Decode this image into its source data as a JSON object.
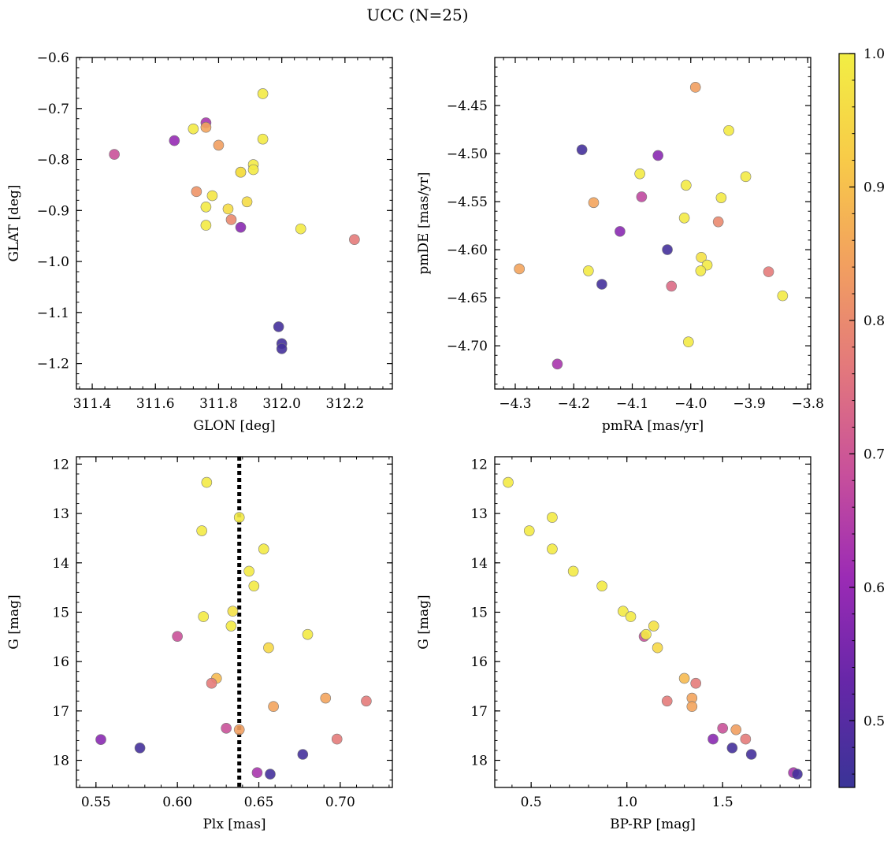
{
  "figure": {
    "title": "UCC (N=25)"
  },
  "colorbar": {
    "min": 0.45,
    "max": 1.0,
    "ticks": [
      0.5,
      0.6,
      0.7,
      0.8,
      0.9,
      1.0
    ],
    "tick_labels": [
      "0.5",
      "0.6",
      "0.7",
      "0.8",
      "0.9",
      "1.0"
    ],
    "colormap": "plasma",
    "colors": [
      "#3a3497",
      "#6627a8",
      "#9b2bb5",
      "#c8509b",
      "#e3787c",
      "#f2a05f",
      "#f8cb48",
      "#f2ee44"
    ]
  },
  "chart_data": [
    {
      "type": "scatter",
      "xlabel": "GLON [deg]",
      "ylabel": "GLAT [deg]",
      "xlim": [
        311.35,
        312.35
      ],
      "ylim": [
        -1.25,
        -0.6
      ],
      "y_inverted": false,
      "xticks": [
        311.4,
        311.6,
        311.8,
        312.0,
        312.2
      ],
      "xtick_labels": [
        "311.4",
        "311.6",
        "311.8",
        "312.0",
        "312.2"
      ],
      "yticks": [
        -0.6,
        -0.7,
        -0.8,
        -0.9,
        -1.0,
        -1.1,
        -1.2
      ],
      "ytick_labels": [
        "−0.6",
        "−0.7",
        "−0.8",
        "−0.9",
        "−1.0",
        "−1.1",
        "−1.2"
      ],
      "points": [
        {
          "x": 311.47,
          "y": -0.79,
          "c": 0.69
        },
        {
          "x": 311.66,
          "y": -0.763,
          "c": 0.6
        },
        {
          "x": 311.72,
          "y": -0.74,
          "c": 0.99
        },
        {
          "x": 311.76,
          "y": -0.728,
          "c": 0.63
        },
        {
          "x": 311.76,
          "y": -0.737,
          "c": 0.85
        },
        {
          "x": 311.8,
          "y": -0.772,
          "c": 0.84
        },
        {
          "x": 311.73,
          "y": -0.863,
          "c": 0.82
        },
        {
          "x": 311.78,
          "y": -0.871,
          "c": 0.98
        },
        {
          "x": 311.76,
          "y": -0.893,
          "c": 0.99
        },
        {
          "x": 311.76,
          "y": -0.929,
          "c": 0.99
        },
        {
          "x": 311.83,
          "y": -0.897,
          "c": 0.96
        },
        {
          "x": 311.84,
          "y": -0.918,
          "c": 0.8
        },
        {
          "x": 311.87,
          "y": -0.825,
          "c": 0.89
        },
        {
          "x": 311.87,
          "y": -0.825,
          "c": 0.97
        },
        {
          "x": 311.87,
          "y": -0.933,
          "c": 0.58
        },
        {
          "x": 311.89,
          "y": -0.883,
          "c": 0.96
        },
        {
          "x": 311.91,
          "y": -0.81,
          "c": 0.99
        },
        {
          "x": 311.91,
          "y": -0.82,
          "c": 0.99
        },
        {
          "x": 311.94,
          "y": -0.671,
          "c": 0.99
        },
        {
          "x": 311.94,
          "y": -0.76,
          "c": 0.99
        },
        {
          "x": 312.06,
          "y": -0.936,
          "c": 0.99
        },
        {
          "x": 312.23,
          "y": -0.957,
          "c": 0.77
        },
        {
          "x": 311.99,
          "y": -1.128,
          "c": 0.47
        },
        {
          "x": 312.0,
          "y": -1.161,
          "c": 0.47
        },
        {
          "x": 312.0,
          "y": -1.171,
          "c": 0.47
        }
      ]
    },
    {
      "type": "scatter",
      "xlabel": "pmRA [mas/yr]",
      "ylabel": "pmDE [mas/yr]",
      "xlim": [
        -4.335,
        -3.795
      ],
      "ylim": [
        -4.745,
        -4.4
      ],
      "y_inverted": false,
      "xticks": [
        -4.3,
        -4.2,
        -4.1,
        -4.0,
        -3.9,
        -3.8
      ],
      "xtick_labels": [
        "−4.3",
        "−4.2",
        "−4.1",
        "−4.0",
        "−3.9",
        "−3.8"
      ],
      "yticks": [
        -4.45,
        -4.5,
        -4.55,
        -4.6,
        -4.65,
        -4.7
      ],
      "ytick_labels": [
        "−4.45",
        "−4.50",
        "−4.55",
        "−4.60",
        "−4.65",
        "−4.70"
      ],
      "points": [
        {
          "x": -3.992,
          "y": -4.431,
          "c": 0.84
        },
        {
          "x": -3.935,
          "y": -4.476,
          "c": 0.99
        },
        {
          "x": -4.186,
          "y": -4.496,
          "c": 0.47
        },
        {
          "x": -4.056,
          "y": -4.502,
          "c": 0.58
        },
        {
          "x": -4.087,
          "y": -4.521,
          "c": 0.99
        },
        {
          "x": -3.906,
          "y": -4.524,
          "c": 0.99
        },
        {
          "x": -4.008,
          "y": -4.533,
          "c": 0.99
        },
        {
          "x": -4.084,
          "y": -4.545,
          "c": 0.67
        },
        {
          "x": -3.948,
          "y": -4.546,
          "c": 0.99
        },
        {
          "x": -4.166,
          "y": -4.551,
          "c": 0.85
        },
        {
          "x": -4.011,
          "y": -4.567,
          "c": 0.99
        },
        {
          "x": -3.953,
          "y": -4.571,
          "c": 0.8
        },
        {
          "x": -4.121,
          "y": -4.581,
          "c": 0.58
        },
        {
          "x": -4.04,
          "y": -4.6,
          "c": 0.47
        },
        {
          "x": -3.982,
          "y": -4.608,
          "c": 0.97
        },
        {
          "x": -3.972,
          "y": -4.616,
          "c": 0.99
        },
        {
          "x": -4.293,
          "y": -4.62,
          "c": 0.85
        },
        {
          "x": -4.175,
          "y": -4.622,
          "c": 0.99
        },
        {
          "x": -3.983,
          "y": -4.622,
          "c": 0.99
        },
        {
          "x": -3.867,
          "y": -4.623,
          "c": 0.77
        },
        {
          "x": -4.152,
          "y": -4.636,
          "c": 0.47
        },
        {
          "x": -4.033,
          "y": -4.638,
          "c": 0.74
        },
        {
          "x": -3.843,
          "y": -4.648,
          "c": 0.99
        },
        {
          "x": -4.004,
          "y": -4.696,
          "c": 0.99
        },
        {
          "x": -4.228,
          "y": -4.719,
          "c": 0.63
        }
      ]
    },
    {
      "type": "scatter",
      "xlabel": "Plx [mas]",
      "ylabel": "G [mag]",
      "xlim": [
        0.538,
        0.732
      ],
      "ylim": [
        11.85,
        18.55
      ],
      "y_inverted": true,
      "xticks": [
        0.55,
        0.6,
        0.65,
        0.7
      ],
      "xtick_labels": [
        "0.55",
        "0.60",
        "0.65",
        "0.70"
      ],
      "yticks": [
        12,
        13,
        14,
        15,
        16,
        17,
        18
      ],
      "ytick_labels": [
        "12",
        "13",
        "14",
        "15",
        "16",
        "17",
        "18"
      ],
      "vline": 0.638,
      "points": [
        {
          "x": 0.618,
          "y": 12.37,
          "c": 0.99
        },
        {
          "x": 0.638,
          "y": 13.08,
          "c": 0.99
        },
        {
          "x": 0.615,
          "y": 13.35,
          "c": 0.99
        },
        {
          "x": 0.653,
          "y": 13.72,
          "c": 0.99
        },
        {
          "x": 0.644,
          "y": 14.17,
          "c": 0.99
        },
        {
          "x": 0.647,
          "y": 14.47,
          "c": 0.99
        },
        {
          "x": 0.634,
          "y": 14.98,
          "c": 0.97
        },
        {
          "x": 0.616,
          "y": 15.09,
          "c": 0.99
        },
        {
          "x": 0.633,
          "y": 15.28,
          "c": 0.99
        },
        {
          "x": 0.68,
          "y": 15.45,
          "c": 0.99
        },
        {
          "x": 0.6,
          "y": 15.49,
          "c": 0.69
        },
        {
          "x": 0.656,
          "y": 15.72,
          "c": 0.95
        },
        {
          "x": 0.624,
          "y": 16.34,
          "c": 0.89
        },
        {
          "x": 0.621,
          "y": 16.44,
          "c": 0.77
        },
        {
          "x": 0.691,
          "y": 16.74,
          "c": 0.85
        },
        {
          "x": 0.716,
          "y": 16.8,
          "c": 0.77
        },
        {
          "x": 0.659,
          "y": 16.91,
          "c": 0.85
        },
        {
          "x": 0.63,
          "y": 17.35,
          "c": 0.69
        },
        {
          "x": 0.638,
          "y": 17.38,
          "c": 0.84
        },
        {
          "x": 0.698,
          "y": 17.57,
          "c": 0.77
        },
        {
          "x": 0.553,
          "y": 17.58,
          "c": 0.58
        },
        {
          "x": 0.577,
          "y": 17.75,
          "c": 0.47
        },
        {
          "x": 0.677,
          "y": 17.88,
          "c": 0.47
        },
        {
          "x": 0.649,
          "y": 18.25,
          "c": 0.63
        },
        {
          "x": 0.657,
          "y": 18.28,
          "c": 0.47
        }
      ]
    },
    {
      "type": "scatter",
      "xlabel": "BP-RP [mag]",
      "ylabel": "G [mag]",
      "xlim": [
        0.31,
        1.96
      ],
      "ylim": [
        11.85,
        18.55
      ],
      "y_inverted": true,
      "xticks": [
        0.5,
        1.0,
        1.5
      ],
      "xtick_labels": [
        "0.5",
        "1.0",
        "1.5"
      ],
      "yticks": [
        12,
        13,
        14,
        15,
        16,
        17,
        18
      ],
      "ytick_labels": [
        "12",
        "13",
        "14",
        "15",
        "16",
        "17",
        "18"
      ],
      "points": [
        {
          "x": 0.38,
          "y": 12.37,
          "c": 0.99
        },
        {
          "x": 0.49,
          "y": 13.35,
          "c": 0.99
        },
        {
          "x": 0.61,
          "y": 13.08,
          "c": 0.99
        },
        {
          "x": 0.61,
          "y": 13.72,
          "c": 0.99
        },
        {
          "x": 0.72,
          "y": 14.17,
          "c": 0.99
        },
        {
          "x": 0.87,
          "y": 14.47,
          "c": 0.99
        },
        {
          "x": 0.98,
          "y": 14.98,
          "c": 0.99
        },
        {
          "x": 1.02,
          "y": 15.09,
          "c": 0.99
        },
        {
          "x": 1.14,
          "y": 15.28,
          "c": 0.97
        },
        {
          "x": 1.09,
          "y": 15.49,
          "c": 0.69
        },
        {
          "x": 1.1,
          "y": 15.45,
          "c": 0.99
        },
        {
          "x": 1.16,
          "y": 15.72,
          "c": 0.95
        },
        {
          "x": 1.3,
          "y": 16.34,
          "c": 0.89
        },
        {
          "x": 1.36,
          "y": 16.44,
          "c": 0.77
        },
        {
          "x": 1.34,
          "y": 16.74,
          "c": 0.85
        },
        {
          "x": 1.21,
          "y": 16.8,
          "c": 0.77
        },
        {
          "x": 1.34,
          "y": 16.91,
          "c": 0.85
        },
        {
          "x": 1.5,
          "y": 17.35,
          "c": 0.69
        },
        {
          "x": 1.57,
          "y": 17.38,
          "c": 0.84
        },
        {
          "x": 1.45,
          "y": 17.57,
          "c": 0.58
        },
        {
          "x": 1.62,
          "y": 17.57,
          "c": 0.77
        },
        {
          "x": 1.55,
          "y": 17.75,
          "c": 0.47
        },
        {
          "x": 1.65,
          "y": 17.88,
          "c": 0.47
        },
        {
          "x": 1.87,
          "y": 18.25,
          "c": 0.63
        },
        {
          "x": 1.89,
          "y": 18.28,
          "c": 0.47
        }
      ]
    }
  ]
}
